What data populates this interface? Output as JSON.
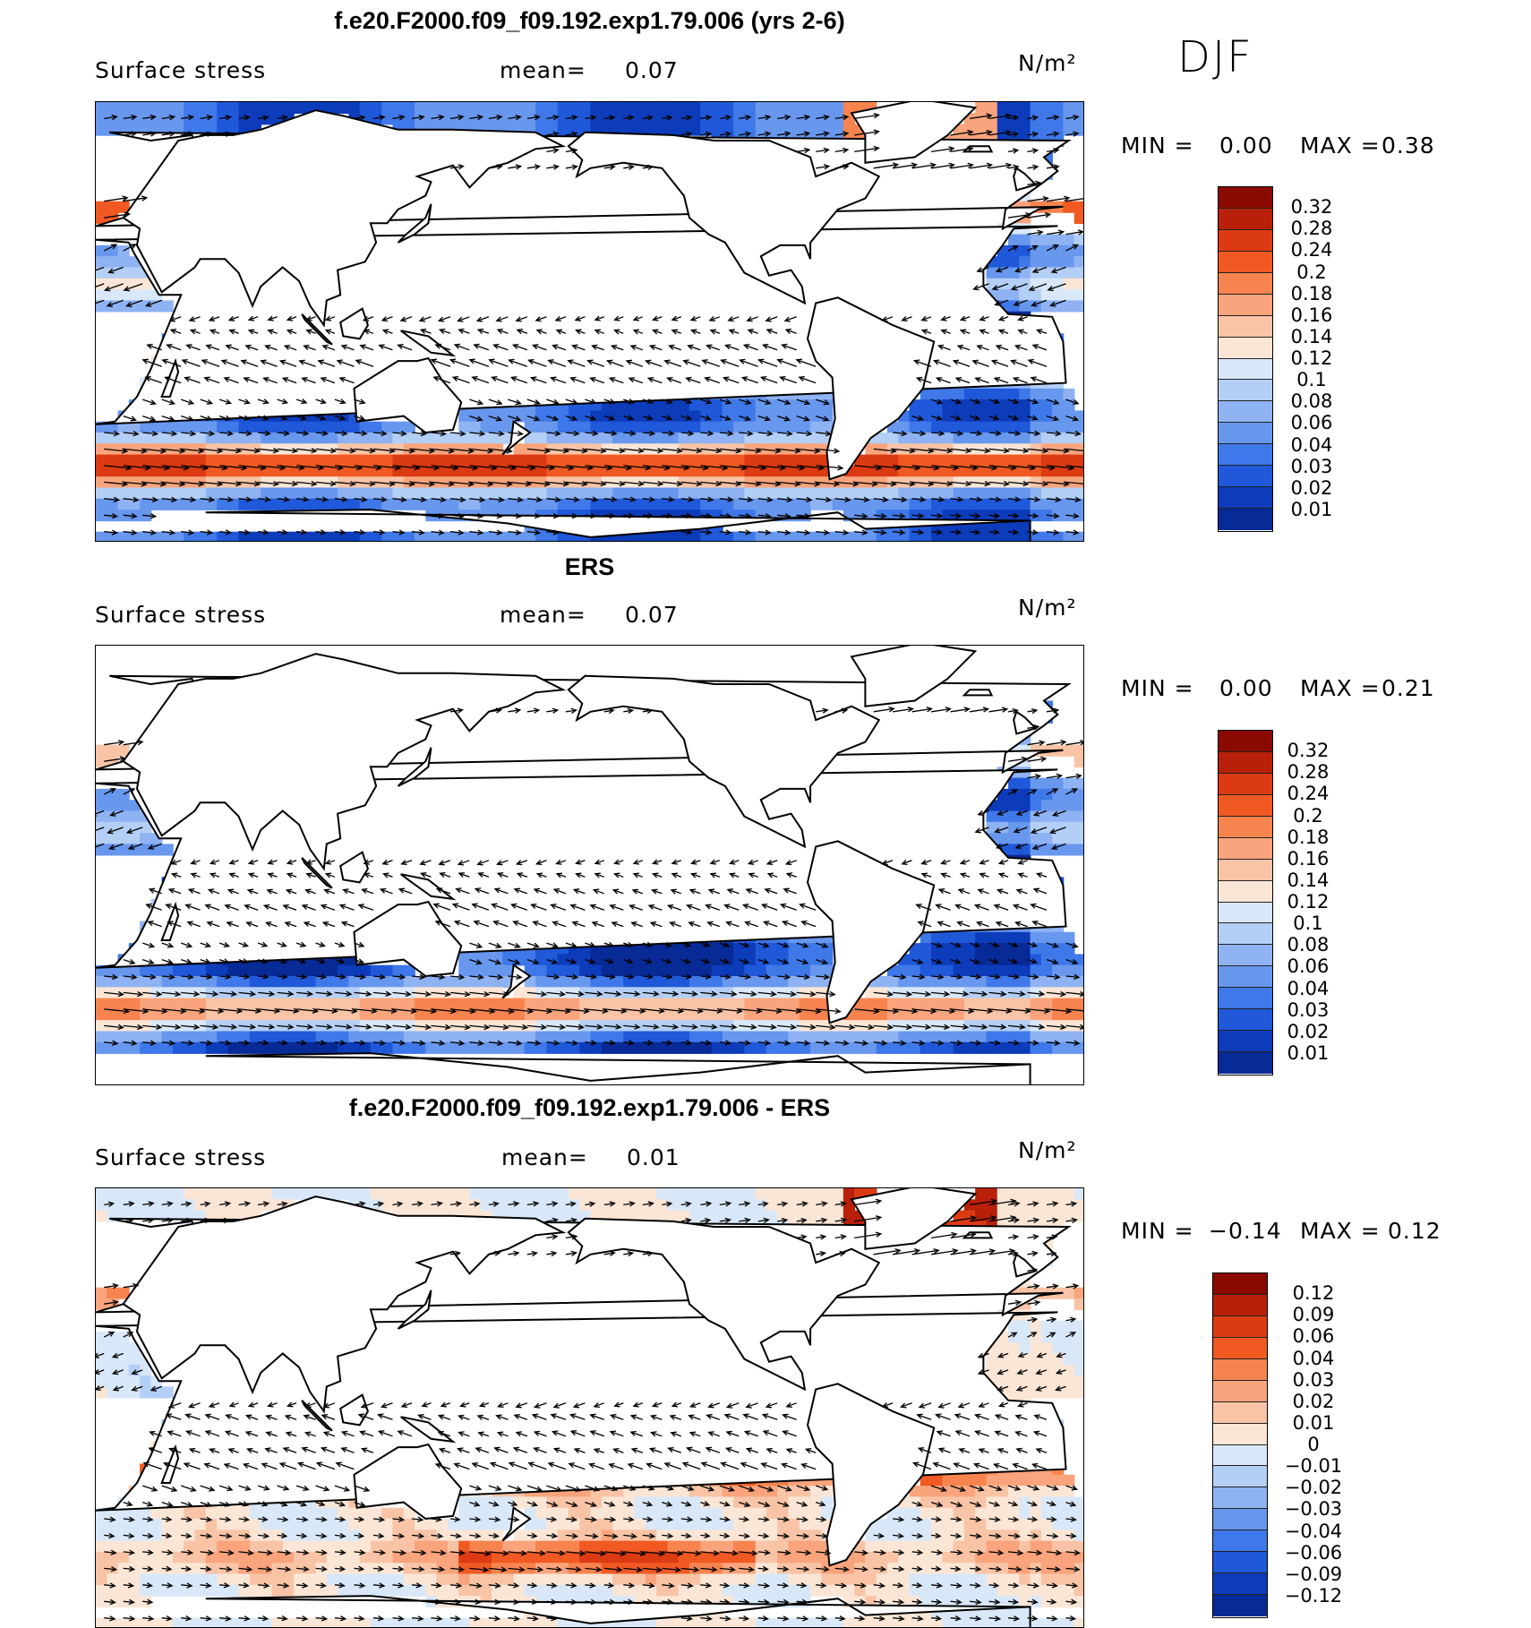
{
  "season": "DJF",
  "units": "N/m²",
  "panels": [
    {
      "title": "f.e20.F2000.f09_f09.192.exp1.79.006 (yrs 2-6)",
      "variable": "Surface stress",
      "mean_label": "mean=",
      "mean_value": "0.07",
      "min_label": "MIN =",
      "min_value": "0.00",
      "max_label": "MAX =",
      "max_value": "0.38",
      "colorbar": {
        "ticks": [
          "0.32",
          "0.28",
          "0.24",
          "0.2",
          "0.18",
          "0.16",
          "0.14",
          "0.12",
          "0.1",
          "0.08",
          "0.06",
          "0.04",
          "0.03",
          "0.02",
          "0.01"
        ],
        "colors": [
          "#8b0a00",
          "#b8200a",
          "#dc3a12",
          "#f05a22",
          "#f7844f",
          "#f9a47c",
          "#f9c4a6",
          "#fbe6d6",
          "#d8e8f9",
          "#b4cff5",
          "#8fb3f2",
          "#6897ee",
          "#3f78e8",
          "#1f59d9",
          "#0d3cba",
          "#072a96"
        ]
      },
      "field": "model"
    },
    {
      "title": "ERS",
      "variable": "Surface stress",
      "mean_label": "mean=",
      "mean_value": "0.07",
      "min_label": "MIN =",
      "min_value": "0.00",
      "max_label": "MAX =",
      "max_value": "0.21",
      "colorbar": {
        "ticks": [
          "0.32",
          "0.28",
          "0.24",
          "0.2",
          "0.18",
          "0.16",
          "0.14",
          "0.12",
          "0.1",
          "0.08",
          "0.06",
          "0.04",
          "0.03",
          "0.02",
          "0.01"
        ],
        "colors": [
          "#8b0a00",
          "#b8200a",
          "#dc3a12",
          "#f05a22",
          "#f7844f",
          "#f9a47c",
          "#f9c4a6",
          "#fbe6d6",
          "#d8e8f9",
          "#b4cff5",
          "#8fb3f2",
          "#6897ee",
          "#3f78e8",
          "#1f59d9",
          "#0d3cba",
          "#072a96"
        ]
      },
      "field": "obs"
    },
    {
      "title": "f.e20.F2000.f09_f09.192.exp1.79.006 - ERS",
      "variable": "Surface stress",
      "mean_label": "mean=",
      "mean_value": "0.01",
      "min_label": "MIN =",
      "min_value": "−0.14",
      "max_label": "MAX =",
      "max_value": "0.12",
      "colorbar": {
        "ticks": [
          "0.12",
          "0.09",
          "0.06",
          "0.04",
          "0.03",
          "0.02",
          "0.01",
          "0",
          "−0.01",
          "−0.02",
          "−0.03",
          "−0.04",
          "−0.06",
          "−0.09",
          "−0.12"
        ],
        "colors": [
          "#8b0a00",
          "#b8200a",
          "#dc3a12",
          "#f05a22",
          "#f7844f",
          "#f9a47c",
          "#f9c4a6",
          "#fbe6d6",
          "#d8e8f9",
          "#b4cff5",
          "#8fb3f2",
          "#6897ee",
          "#3f78e8",
          "#1f59d9",
          "#0d3cba",
          "#072a96"
        ]
      },
      "field": "diff"
    }
  ]
}
